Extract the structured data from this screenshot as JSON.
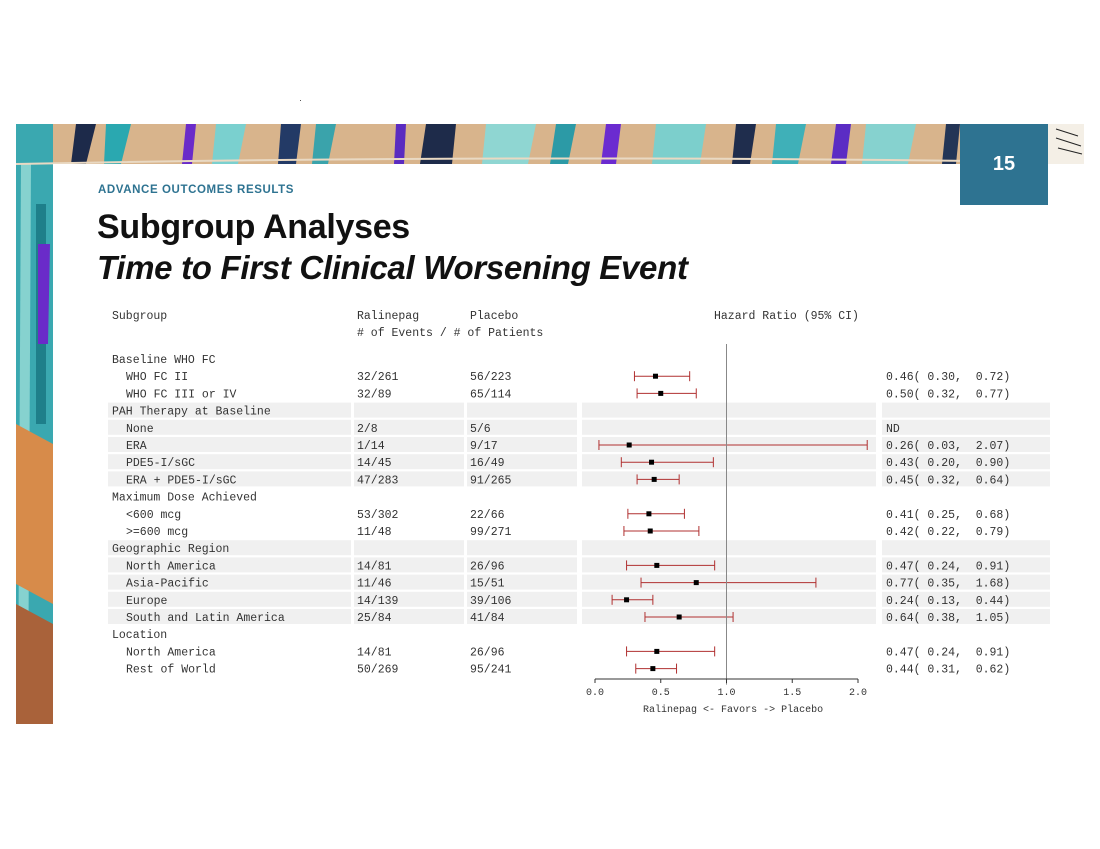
{
  "slide": {
    "number": "15",
    "section_label": "ADVANCE OUTCOMES RESULTS",
    "title_line1": "Subgroup Analyses",
    "title_line2": "Time to First Clinical Worsening Event"
  },
  "colors": {
    "accent": "#2e7391",
    "ci_line": "#b03030",
    "band": "#f0f0f0"
  },
  "chart_data": {
    "type": "forest",
    "headers": {
      "subgroup": "Subgroup",
      "ralinepag": "Ralinepag",
      "placebo": "Placebo",
      "events_sub": "# of Events / # of Patients",
      "hr": "Hazard Ratio (95% CI)"
    },
    "rows": [
      {
        "label": "Baseline WHO FC",
        "header": true
      },
      {
        "label": "WHO FC II",
        "ral": "32/261",
        "pla": "56/223",
        "hr": 0.46,
        "lo": 0.3,
        "hi": 0.72,
        "text": "0.46( 0.30,  0.72)"
      },
      {
        "label": "WHO FC III or IV",
        "ral": "32/89",
        "pla": "65/114",
        "hr": 0.5,
        "lo": 0.32,
        "hi": 0.77,
        "text": "0.50( 0.32,  0.77)"
      },
      {
        "label": "PAH Therapy at Baseline",
        "header": true
      },
      {
        "label": "None",
        "ral": "2/8",
        "pla": "5/6",
        "text": "ND"
      },
      {
        "label": "ERA",
        "ral": "1/14",
        "pla": "9/17",
        "hr": 0.26,
        "lo": 0.03,
        "hi": 2.07,
        "text": "0.26( 0.03,  2.07)"
      },
      {
        "label": "PDE5-I/sGC",
        "ral": "14/45",
        "pla": "16/49",
        "hr": 0.43,
        "lo": 0.2,
        "hi": 0.9,
        "text": "0.43( 0.20,  0.90)"
      },
      {
        "label": "ERA + PDE5-I/sGC",
        "ral": "47/283",
        "pla": "91/265",
        "hr": 0.45,
        "lo": 0.32,
        "hi": 0.64,
        "text": "0.45( 0.32,  0.64)"
      },
      {
        "label": "Maximum Dose Achieved",
        "header": true
      },
      {
        "label": "<600 mcg",
        "ral": "53/302",
        "pla": "22/66",
        "hr": 0.41,
        "lo": 0.25,
        "hi": 0.68,
        "text": "0.41( 0.25,  0.68)"
      },
      {
        "label": ">=600 mcg",
        "ral": "11/48",
        "pla": "99/271",
        "hr": 0.42,
        "lo": 0.22,
        "hi": 0.79,
        "text": "0.42( 0.22,  0.79)"
      },
      {
        "label": "Geographic Region",
        "header": true
      },
      {
        "label": "North America",
        "ral": "14/81",
        "pla": "26/96",
        "hr": 0.47,
        "lo": 0.24,
        "hi": 0.91,
        "text": "0.47( 0.24,  0.91)"
      },
      {
        "label": "Asia-Pacific",
        "ral": "11/46",
        "pla": "15/51",
        "hr": 0.77,
        "lo": 0.35,
        "hi": 1.68,
        "text": "0.77( 0.35,  1.68)"
      },
      {
        "label": "Europe",
        "ral": "14/139",
        "pla": "39/106",
        "hr": 0.24,
        "lo": 0.13,
        "hi": 0.44,
        "text": "0.24( 0.13,  0.44)"
      },
      {
        "label": "South and Latin America",
        "ral": "25/84",
        "pla": "41/84",
        "hr": 0.64,
        "lo": 0.38,
        "hi": 1.05,
        "text": "0.64( 0.38,  1.05)"
      },
      {
        "label": "Location",
        "header": true
      },
      {
        "label": "North America",
        "ral": "14/81",
        "pla": "26/96",
        "hr": 0.47,
        "lo": 0.24,
        "hi": 0.91,
        "text": "0.47( 0.24,  0.91)"
      },
      {
        "label": "Rest of World",
        "ral": "50/269",
        "pla": "95/241",
        "hr": 0.44,
        "lo": 0.31,
        "hi": 0.62,
        "text": "0.44( 0.31,  0.62)"
      }
    ],
    "xlim": [
      0.0,
      2.0
    ],
    "reference": 1.0,
    "ticks": [
      0.0,
      0.5,
      1.0,
      1.5,
      2.0
    ],
    "tick_labels": [
      "0.0",
      "0.5",
      "1.0",
      "1.5",
      "2.0"
    ],
    "xlabel": "Ralinepag <- Favors -> Placebo"
  }
}
